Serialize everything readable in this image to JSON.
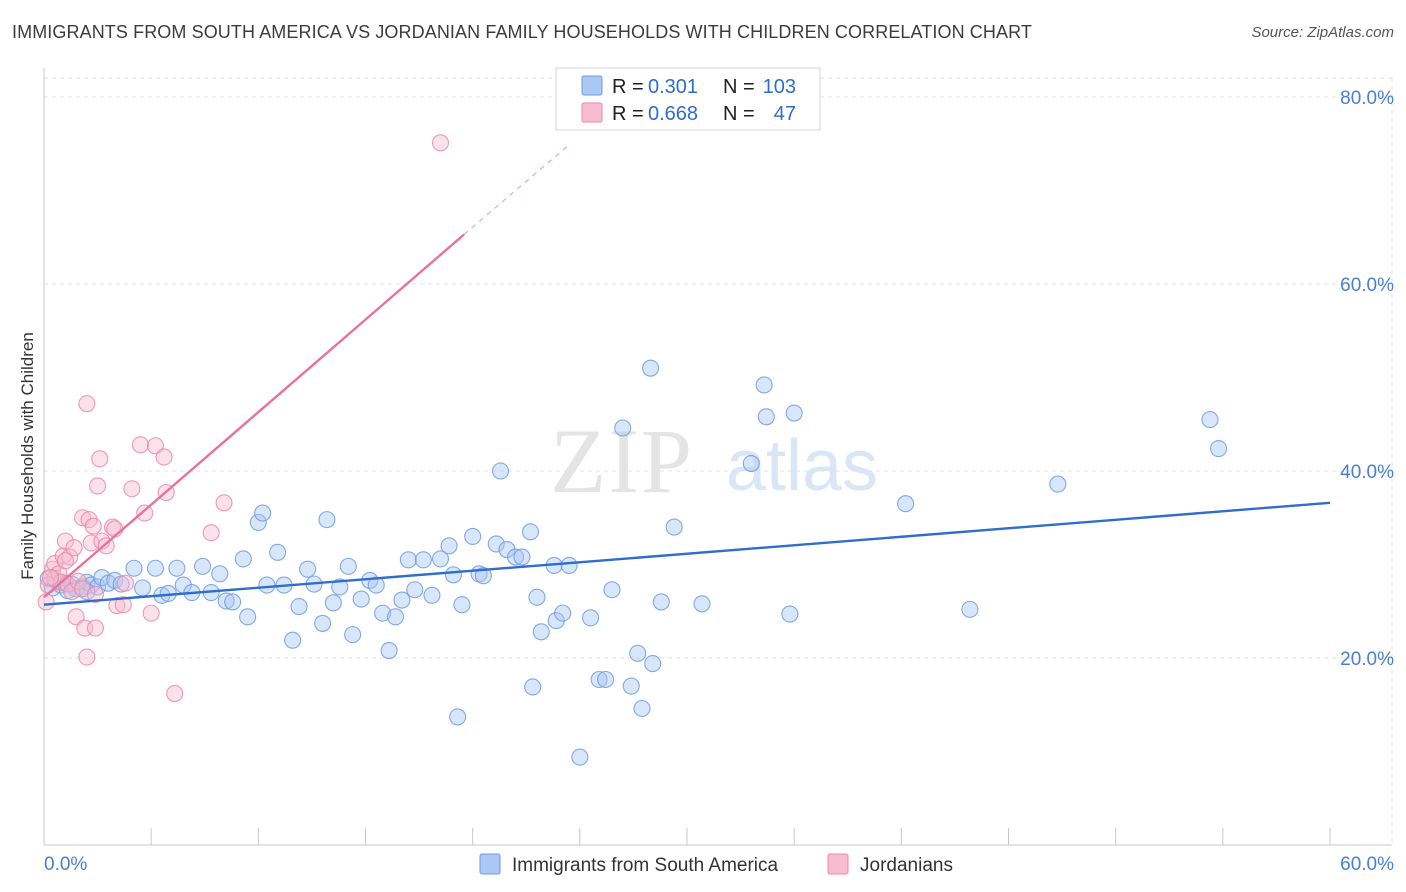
{
  "header": {
    "title": "IMMIGRANTS FROM SOUTH AMERICA VS JORDANIAN FAMILY HOUSEHOLDS WITH CHILDREN CORRELATION CHART",
    "source": "Source: ZipAtlas.com"
  },
  "watermark": {
    "zip": "ZIP",
    "atlas": "atlas"
  },
  "stats_legend": {
    "rows": [
      {
        "r_label": "R =",
        "r_value": "0.301",
        "n_label": "N =",
        "n_value": "103",
        "color": "#a9c8f2",
        "stroke": "#6e9be0"
      },
      {
        "r_label": "R =",
        "r_value": "0.668",
        "n_label": "N =",
        "n_value": "47",
        "color": "#f7bcd0",
        "stroke": "#e98aa8"
      }
    ]
  },
  "bottom_legend": [
    {
      "label": "Immigrants from South America",
      "color": "#a9c8f2",
      "stroke": "#6e9be0"
    },
    {
      "label": "Jordanians",
      "color": "#f7bcd0",
      "stroke": "#e98aa8"
    }
  ],
  "chart_data": {
    "type": "scatter",
    "title": "IMMIGRANTS FROM SOUTH AMERICA VS JORDANIAN FAMILY HOUSEHOLDS WITH CHILDREN CORRELATION CHART",
    "xlabel": "",
    "ylabel": "Family Households with Children",
    "xlim": [
      0,
      60
    ],
    "ylim": [
      0,
      80
    ],
    "x_tick_labels": [
      "0.0%",
      "60.0%"
    ],
    "y_ticks": [
      20,
      40,
      60,
      80
    ],
    "y_tick_labels": [
      "20.0%",
      "40.0%",
      "60.0%",
      "80.0%"
    ],
    "grid": true,
    "series": [
      {
        "name": "Immigrants from South America",
        "color": "#6e9be0",
        "fill": "#a9c8f2",
        "trend": {
          "x": [
            0,
            60
          ],
          "y": [
            25.7,
            36.6
          ],
          "color": "#2f6ecc"
        },
        "points": [
          [
            0.2,
            28.5
          ],
          [
            0.4,
            27.5
          ],
          [
            0.6,
            28.2
          ],
          [
            0.8,
            27.8
          ],
          [
            1.0,
            28.0
          ],
          [
            1.1,
            27.2
          ],
          [
            1.3,
            27.9
          ],
          [
            1.5,
            27.4
          ],
          [
            1.8,
            27.6
          ],
          [
            2.0,
            28.1
          ],
          [
            2.2,
            27.8
          ],
          [
            2.5,
            27.6
          ],
          [
            2.7,
            28.6
          ],
          [
            3.0,
            28.0
          ],
          [
            3.3,
            28.3
          ],
          [
            3.6,
            27.9
          ],
          [
            4.2,
            29.6
          ],
          [
            4.6,
            27.5
          ],
          [
            5.2,
            29.6
          ],
          [
            5.5,
            26.7
          ],
          [
            5.8,
            26.9
          ],
          [
            6.2,
            29.6
          ],
          [
            6.5,
            27.8
          ],
          [
            6.9,
            27.0
          ],
          [
            7.4,
            29.8
          ],
          [
            7.8,
            27.0
          ],
          [
            8.2,
            29.0
          ],
          [
            8.5,
            26.1
          ],
          [
            8.8,
            26.0
          ],
          [
            9.3,
            30.6
          ],
          [
            9.5,
            24.4
          ],
          [
            10.0,
            34.5
          ],
          [
            10.2,
            35.5
          ],
          [
            10.4,
            27.8
          ],
          [
            10.9,
            31.3
          ],
          [
            11.2,
            27.8
          ],
          [
            11.6,
            21.9
          ],
          [
            11.9,
            25.5
          ],
          [
            12.3,
            29.5
          ],
          [
            12.6,
            27.9
          ],
          [
            13.0,
            23.7
          ],
          [
            13.2,
            34.8
          ],
          [
            13.5,
            25.9
          ],
          [
            13.8,
            27.6
          ],
          [
            14.2,
            29.8
          ],
          [
            14.4,
            22.5
          ],
          [
            14.8,
            26.3
          ],
          [
            15.2,
            28.3
          ],
          [
            15.5,
            27.8
          ],
          [
            15.8,
            24.8
          ],
          [
            16.1,
            20.8
          ],
          [
            16.4,
            24.4
          ],
          [
            16.7,
            26.2
          ],
          [
            17.0,
            30.5
          ],
          [
            17.3,
            27.3
          ],
          [
            17.7,
            30.5
          ],
          [
            18.1,
            26.7
          ],
          [
            18.5,
            30.6
          ],
          [
            18.9,
            32.0
          ],
          [
            19.1,
            28.9
          ],
          [
            19.3,
            13.7
          ],
          [
            19.5,
            25.7
          ],
          [
            20.0,
            33.0
          ],
          [
            20.3,
            29.0
          ],
          [
            20.5,
            28.8
          ],
          [
            21.1,
            32.2
          ],
          [
            21.3,
            40.0
          ],
          [
            21.6,
            31.6
          ],
          [
            22.0,
            30.8
          ],
          [
            22.3,
            30.8
          ],
          [
            22.7,
            33.5
          ],
          [
            22.8,
            16.9
          ],
          [
            23.0,
            26.5
          ],
          [
            23.2,
            22.8
          ],
          [
            23.8,
            29.9
          ],
          [
            23.9,
            24.0
          ],
          [
            24.2,
            24.8
          ],
          [
            24.5,
            29.9
          ],
          [
            25.0,
            9.4
          ],
          [
            25.5,
            24.3
          ],
          [
            25.9,
            17.7
          ],
          [
            26.2,
            17.7
          ],
          [
            26.5,
            27.3
          ],
          [
            27.0,
            44.6
          ],
          [
            27.4,
            17.0
          ],
          [
            27.7,
            20.5
          ],
          [
            27.9,
            14.6
          ],
          [
            28.3,
            51.0
          ],
          [
            28.4,
            19.4
          ],
          [
            28.8,
            26.0
          ],
          [
            29.4,
            34.0
          ],
          [
            30.7,
            25.8
          ],
          [
            33.0,
            40.8
          ],
          [
            33.6,
            49.2
          ],
          [
            33.7,
            45.8
          ],
          [
            34.8,
            24.7
          ],
          [
            35.0,
            46.2
          ],
          [
            40.2,
            36.5
          ],
          [
            43.2,
            25.2
          ],
          [
            47.3,
            38.6
          ],
          [
            54.4,
            45.5
          ],
          [
            54.8,
            42.4
          ],
          [
            2.0,
            27.1
          ]
        ]
      },
      {
        "name": "Jordanians",
        "color": "#e98aa8",
        "fill": "#f7bcd0",
        "trend": {
          "x": [
            0,
            19.6,
            24.4
          ],
          "y": [
            26.5,
            65.3,
            74.7
          ],
          "color": "#e8739a"
        },
        "points": [
          [
            0.1,
            26.0
          ],
          [
            0.2,
            27.8
          ],
          [
            0.4,
            29.5
          ],
          [
            0.5,
            30.1
          ],
          [
            0.5,
            28.5
          ],
          [
            0.7,
            29.0
          ],
          [
            0.8,
            28.1
          ],
          [
            0.9,
            30.9
          ],
          [
            1.0,
            32.5
          ],
          [
            1.1,
            27.9
          ],
          [
            1.2,
            30.8
          ],
          [
            1.3,
            27.1
          ],
          [
            1.4,
            31.8
          ],
          [
            1.5,
            24.4
          ],
          [
            1.6,
            28.2
          ],
          [
            1.8,
            35.0
          ],
          [
            1.8,
            27.4
          ],
          [
            1.9,
            23.2
          ],
          [
            2.0,
            47.2
          ],
          [
            2.0,
            20.1
          ],
          [
            2.1,
            34.8
          ],
          [
            2.2,
            32.3
          ],
          [
            2.3,
            34.1
          ],
          [
            2.4,
            26.8
          ],
          [
            2.4,
            23.2
          ],
          [
            2.5,
            38.4
          ],
          [
            2.6,
            41.3
          ],
          [
            2.7,
            32.5
          ],
          [
            2.9,
            32.0
          ],
          [
            3.2,
            34.0
          ],
          [
            3.3,
            33.8
          ],
          [
            3.4,
            25.6
          ],
          [
            3.7,
            25.7
          ],
          [
            3.8,
            28.0
          ],
          [
            4.1,
            38.1
          ],
          [
            4.5,
            42.8
          ],
          [
            4.7,
            35.5
          ],
          [
            5.0,
            24.8
          ],
          [
            5.2,
            42.7
          ],
          [
            5.6,
            41.5
          ],
          [
            5.7,
            37.7
          ],
          [
            6.1,
            16.2
          ],
          [
            7.8,
            33.4
          ],
          [
            8.4,
            36.6
          ],
          [
            18.5,
            75.1
          ],
          [
            0.3,
            28.6
          ],
          [
            1.0,
            30.4
          ]
        ]
      }
    ]
  }
}
